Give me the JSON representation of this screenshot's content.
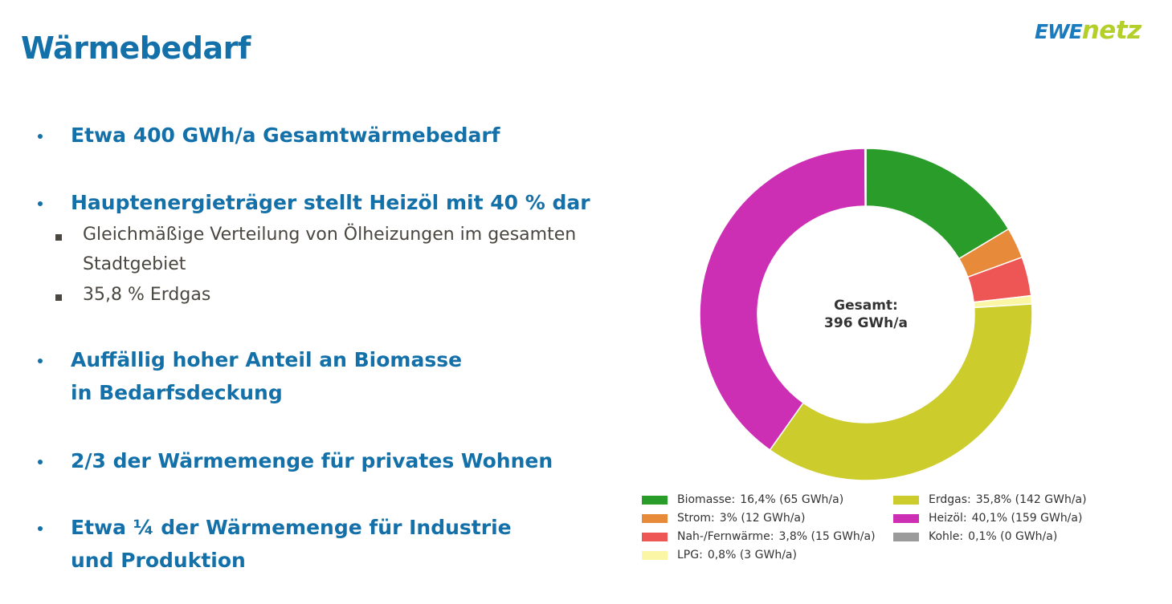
{
  "page": {
    "title": "Wärmebedarf",
    "logo": {
      "part1": "EWE",
      "part2": "netz",
      "color1": "#1a7bbf",
      "color2": "#b5cf2a"
    }
  },
  "bullets": [
    {
      "text": "Etwa 400 GWh/a Gesamtwärmebedarf"
    },
    {
      "text": "Hauptenergieträger stellt Heizöl mit 40 % dar"
    },
    {
      "text": "Gleichmäßige Verteilung von Ölheizungen im gesamten Stadtgebiet"
    },
    {
      "text": "35,8 % Erdgas"
    },
    {
      "text": "Auffällig hoher Anteil an Biomasse in Bedarfsdeckung"
    },
    {
      "text": "2/3 der Wärmemenge für privates Wohnen"
    },
    {
      "text": "Etwa ¼ der Wärmemenge für Industrie und Produktion"
    }
  ],
  "chart_data": {
    "type": "pie",
    "variant": "donut",
    "center_label": {
      "line1": "Gesamt:",
      "line2": "396 GWh/a"
    },
    "legend_position": "bottom",
    "slices": [
      {
        "name": "Biomasse:",
        "value_label": "16,4% (65 GWh/a)",
        "percent": 16.4,
        "gwh": 65,
        "color": "#2a9c2a"
      },
      {
        "name": "Strom:",
        "value_label": "3% (12 GWh/a)",
        "percent": 3.0,
        "gwh": 12,
        "color": "#e78a3a"
      },
      {
        "name": "Nah-/Fernwärme:",
        "value_label": "3,8% (15 GWh/a)",
        "percent": 3.8,
        "gwh": 15,
        "color": "#ee5555"
      },
      {
        "name": "LPG:",
        "value_label": "0,8% (3 GWh/a)",
        "percent": 0.8,
        "gwh": 3,
        "color": "#fbf6a6"
      },
      {
        "name": "Erdgas:",
        "value_label": "35,8% (142 GWh/a)",
        "percent": 35.8,
        "gwh": 142,
        "color": "#cccc2c"
      },
      {
        "name": "Heizöl:",
        "value_label": "40,1% (159 GWh/a)",
        "percent": 40.1,
        "gwh": 159,
        "color": "#cc2fb4"
      },
      {
        "name": "Kohle:",
        "value_label": "0,1% (0 GWh/a)",
        "percent": 0.1,
        "gwh": 0,
        "color": "#9b9b9b"
      }
    ],
    "legend_order": [
      "Biomasse:",
      "Erdgas:",
      "Strom:",
      "Heizöl:",
      "Nah-/Fernwärme:",
      "Kohle:",
      "LPG:"
    ]
  }
}
